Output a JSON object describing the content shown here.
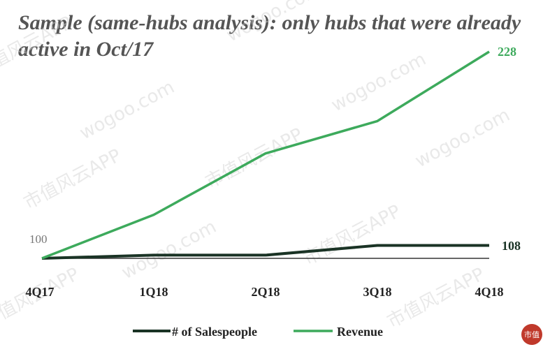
{
  "title": "Sample (same-hubs analysis): only hubs that were already active in Oct/17",
  "watermark": [
    "市值风云APP",
    "wogoo.com"
  ],
  "logo": "市值",
  "colors": {
    "revenue": "#3daa5c",
    "salespeople": "#1a3325"
  },
  "chart_data": {
    "type": "line",
    "categories": [
      "4Q17",
      "1Q18",
      "2Q18",
      "3Q18",
      "4Q18"
    ],
    "series": [
      {
        "name": "# of Salespeople",
        "values": [
          100,
          102,
          102,
          108,
          108
        ]
      },
      {
        "name": "Revenue",
        "values": [
          100,
          127,
          165,
          185,
          228
        ]
      }
    ],
    "labels": {
      "start": "100",
      "revenue_end": "228",
      "salespeople_end": "108"
    },
    "ylim": [
      100,
      228
    ],
    "legend_position": "bottom",
    "grid": false
  }
}
